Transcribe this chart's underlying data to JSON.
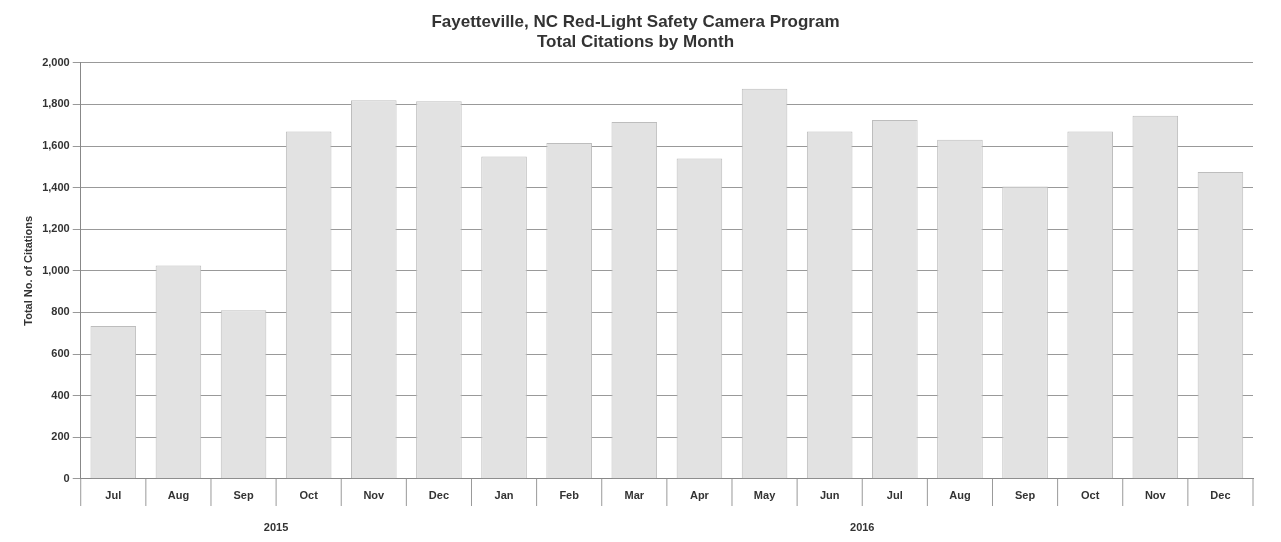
{
  "chart_data": {
    "type": "bar",
    "title": "Fayetteville, NC Red-Light Safety Camera Program",
    "subtitle": "Total Citations by Month",
    "ylabel": "Total No. of Citations",
    "categories": [
      "Jul",
      "Aug",
      "Sep",
      "Oct",
      "Nov",
      "Dec",
      "Jan",
      "Feb",
      "Mar",
      "Apr",
      "May",
      "Jun",
      "Jul",
      "Aug",
      "Sep",
      "Oct",
      "Nov",
      "Dec"
    ],
    "values": [
      735,
      1025,
      810,
      1670,
      1820,
      1815,
      1550,
      1615,
      1715,
      1540,
      1875,
      1670,
      1725,
      1630,
      1405,
      1670,
      1745,
      1475
    ],
    "color": "#e2e2e2",
    "ylim": [
      0,
      2000
    ],
    "yticks": [
      {
        "value": 0,
        "label": "0"
      },
      {
        "value": 200,
        "label": "200"
      },
      {
        "value": 400,
        "label": "400"
      },
      {
        "value": 600,
        "label": "600"
      },
      {
        "value": 800,
        "label": "800"
      },
      {
        "value": 1000,
        "label": "1,000"
      },
      {
        "value": 1200,
        "label": "1,200"
      },
      {
        "value": 1400,
        "label": "1,400"
      },
      {
        "value": 1600,
        "label": "1,600"
      },
      {
        "value": 1800,
        "label": "1,800"
      },
      {
        "value": 2000,
        "label": "2,000"
      }
    ],
    "grid": "y",
    "legend": false,
    "annotations": [
      "2015",
      "2016"
    ]
  }
}
